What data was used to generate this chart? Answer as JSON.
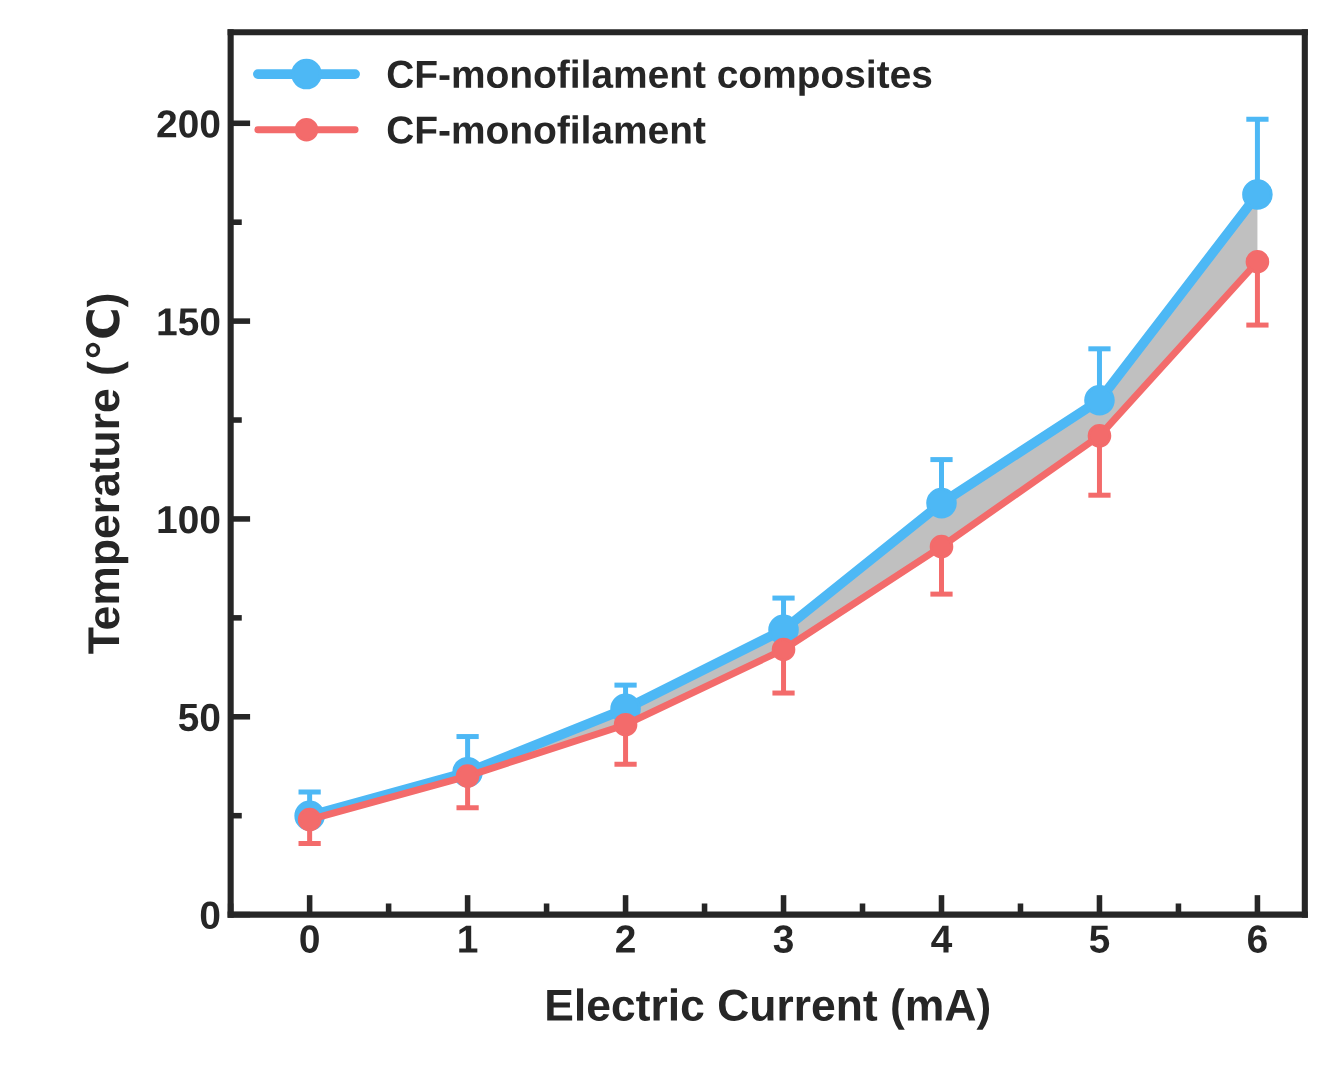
{
  "chart_data": {
    "type": "line",
    "xlabel": "Electric Current (mA)",
    "ylabel": "Temperature (℃)",
    "x": [
      0,
      1,
      2,
      3,
      4,
      5,
      6
    ],
    "xlim": [
      -0.5,
      6.3
    ],
    "ylim": [
      0,
      223
    ],
    "xticks": [
      0,
      1,
      2,
      3,
      4,
      5,
      6
    ],
    "yticks": [
      0,
      50,
      100,
      150,
      200
    ],
    "series": [
      {
        "name": "CF-monofilament composites",
        "color": "#4db8f5",
        "values": [
          25,
          36,
          52,
          72,
          104,
          130,
          182
        ],
        "errors": [
          [
            25,
            31
          ],
          [
            36,
            45
          ],
          [
            52,
            58
          ],
          [
            72,
            80
          ],
          [
            104,
            115
          ],
          [
            130,
            143
          ],
          [
            182,
            201
          ]
        ],
        "lower": [
          24,
          35,
          48,
          67,
          93,
          121,
          165
        ],
        "upper": [
          25,
          36,
          52,
          72,
          104,
          130,
          182
        ]
      },
      {
        "name": "CF-monofilament",
        "color": "#f36b6b",
        "values": [
          24,
          35,
          48,
          67,
          93,
          121,
          165
        ],
        "errors": [
          [
            18,
            24
          ],
          [
            27,
            35
          ],
          [
            38,
            48
          ],
          [
            56,
            67
          ],
          [
            81,
            93
          ],
          [
            106,
            121
          ],
          [
            149,
            165
          ]
        ]
      }
    ],
    "marker": "circle",
    "line_style": "solid",
    "legend": "top left",
    "grid": false
  }
}
